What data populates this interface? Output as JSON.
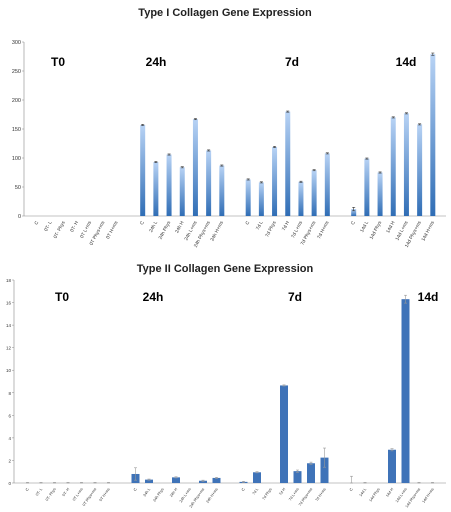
{
  "chart_data": [
    {
      "type": "bar",
      "title": "Type I Collagen Gene Expression",
      "xlabel": "",
      "ylabel": "",
      "ylim": [
        0,
        300
      ],
      "yticks": [
        "0",
        "50",
        "100",
        "150",
        "200",
        "250",
        "300"
      ],
      "grid": false,
      "legend": "none",
      "phase_labels": [
        "T0",
        "24h",
        "7d",
        "14d"
      ],
      "categories": [
        "C",
        "0T- L",
        "0T- Phys",
        "0T- H",
        "0T L+ms",
        "0T Phys+ms",
        "0T H+ms",
        "C",
        "24h L",
        "24h Phys",
        "24h H",
        "24h L+ms",
        "24h Phys+ms",
        "24h H+ms",
        "C",
        "7d L",
        "7d Phys",
        "7d H",
        "7d L+ms",
        "7d Phys+ms",
        "7d H+ms",
        "C",
        "14d L",
        "14d Phys",
        "14d H",
        "14d L+ms",
        "14d Phys+ms",
        "14d H+ms"
      ],
      "values": [
        0,
        0,
        0,
        0,
        0,
        0,
        0,
        157,
        93,
        106,
        84,
        167,
        113,
        87,
        63,
        58,
        119,
        180,
        59,
        79,
        108,
        12,
        99,
        75,
        170,
        177,
        158,
        279
      ],
      "errors": [
        0,
        0,
        0,
        0,
        0,
        0,
        0,
        1,
        1,
        1,
        1,
        1,
        1,
        1,
        1,
        1,
        1,
        1,
        1,
        1,
        1,
        3,
        1,
        1,
        1,
        1,
        1,
        2
      ],
      "colors": {
        "bar_top": "#a9c8f0",
        "bar_bottom": "#2f6db5"
      }
    },
    {
      "type": "bar",
      "title": "Type II Collagen Gene Expression",
      "xlabel": "",
      "ylabel": "",
      "ylim": [
        0,
        18
      ],
      "yticks": [
        "0",
        "2",
        "4",
        "6",
        "8",
        "10",
        "12",
        "14",
        "16",
        "18"
      ],
      "grid": false,
      "legend": "none",
      "phase_labels": [
        "T0",
        "24h",
        "7d",
        "14d"
      ],
      "categories": [
        "C",
        "0T- L",
        "0T- Phys",
        "0T- H",
        "0T L+ms",
        "0T Phys+ms",
        "0T H+ms",
        "C",
        "24h L",
        "24h Phys",
        "24h H",
        "24h L+ms",
        "24h Phys+ms",
        "24h H+ms",
        "C",
        "7d L",
        "7d Phys",
        "7d H",
        "7d L+ms",
        "7d Phys+ms",
        "7d H+ms",
        "C",
        "14d L",
        "14d Phys",
        "14d H",
        "14d L+ms",
        "14d Phys+ms",
        "14d H+ms"
      ],
      "values": [
        0,
        0,
        0,
        0,
        0,
        0,
        0,
        0.8,
        0.3,
        0,
        0.5,
        0,
        0.2,
        0.45,
        0.1,
        0.95,
        0,
        8.65,
        1.05,
        1.75,
        2.25,
        0,
        0,
        0,
        2.95,
        16.3,
        0,
        0
      ],
      "errors": [
        0.05,
        0.05,
        0.05,
        0.05,
        0.05,
        0.05,
        0.05,
        0.55,
        0.05,
        0,
        0.05,
        0,
        0.05,
        0.05,
        0.05,
        0.05,
        0,
        0.05,
        0.1,
        0.1,
        0.85,
        0.6,
        0.05,
        0,
        0.1,
        0.35,
        0.05,
        0.05
      ],
      "colors": {
        "bar": "#3f73b8",
        "error": "#999999"
      }
    }
  ]
}
